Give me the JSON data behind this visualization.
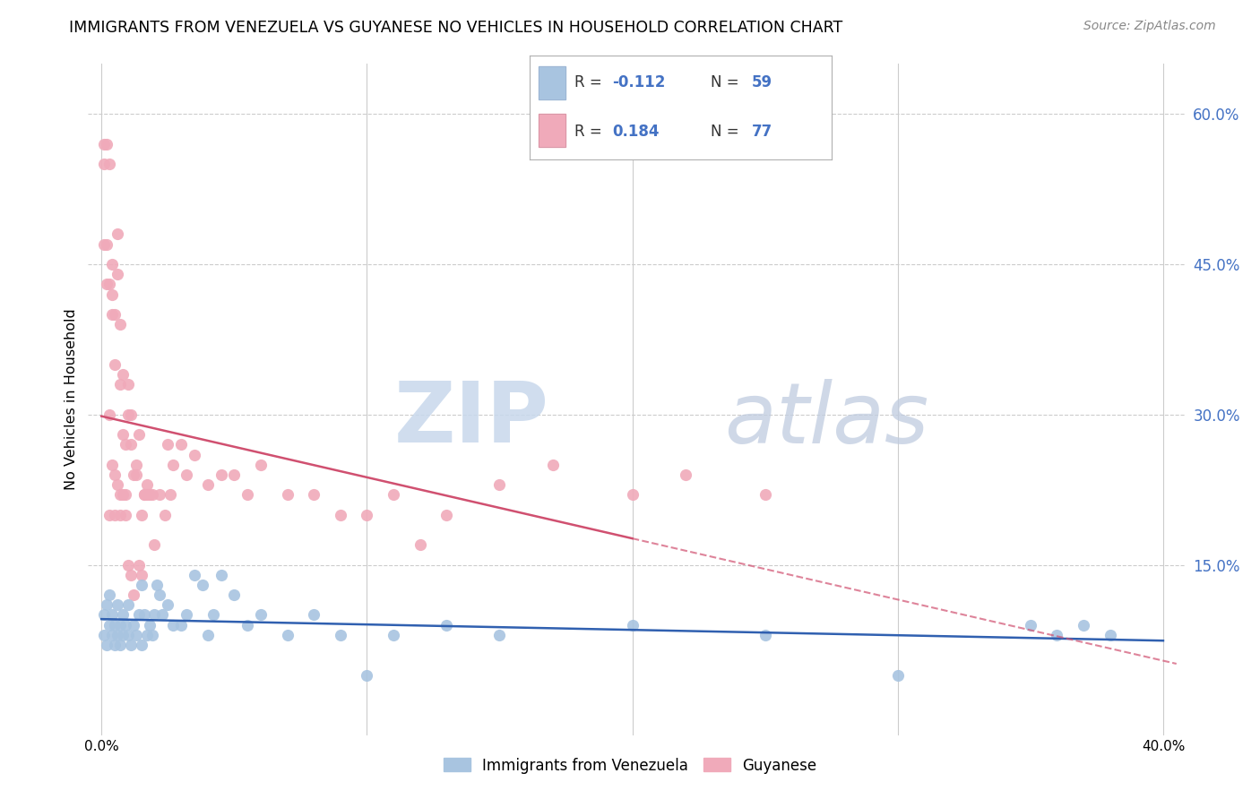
{
  "title": "IMMIGRANTS FROM VENEZUELA VS GUYANESE NO VEHICLES IN HOUSEHOLD CORRELATION CHART",
  "source": "Source: ZipAtlas.com",
  "ylabel": "No Vehicles in Household",
  "right_yticks": [
    "60.0%",
    "45.0%",
    "30.0%",
    "15.0%"
  ],
  "right_ytick_vals": [
    0.6,
    0.45,
    0.3,
    0.15
  ],
  "x_range": [
    0.0,
    0.4
  ],
  "y_range": [
    0.0,
    0.65
  ],
  "legend_blue_R": "-0.112",
  "legend_blue_N": "59",
  "legend_pink_R": "0.184",
  "legend_pink_N": "77",
  "legend_label_blue": "Immigrants from Venezuela",
  "legend_label_pink": "Guyanese",
  "color_blue": "#a8c4e0",
  "color_pink": "#f0aaba",
  "color_blue_line": "#3060b0",
  "color_pink_line": "#d05070",
  "color_blue_dark": "#4472c4",
  "watermark_zip_color": "#c8d8ec",
  "watermark_atlas_color": "#c0cce0",
  "blue_points_x": [
    0.001,
    0.001,
    0.002,
    0.002,
    0.003,
    0.003,
    0.004,
    0.004,
    0.005,
    0.005,
    0.006,
    0.006,
    0.007,
    0.007,
    0.008,
    0.008,
    0.009,
    0.01,
    0.01,
    0.011,
    0.012,
    0.013,
    0.014,
    0.015,
    0.015,
    0.016,
    0.017,
    0.018,
    0.019,
    0.02,
    0.021,
    0.022,
    0.023,
    0.025,
    0.027,
    0.03,
    0.032,
    0.035,
    0.038,
    0.04,
    0.042,
    0.045,
    0.05,
    0.055,
    0.06,
    0.07,
    0.08,
    0.09,
    0.1,
    0.11,
    0.13,
    0.15,
    0.2,
    0.25,
    0.3,
    0.35,
    0.36,
    0.37,
    0.38
  ],
  "blue_points_y": [
    0.1,
    0.08,
    0.11,
    0.07,
    0.09,
    0.12,
    0.08,
    0.1,
    0.09,
    0.07,
    0.11,
    0.08,
    0.09,
    0.07,
    0.1,
    0.08,
    0.09,
    0.08,
    0.11,
    0.07,
    0.09,
    0.08,
    0.1,
    0.13,
    0.07,
    0.1,
    0.08,
    0.09,
    0.08,
    0.1,
    0.13,
    0.12,
    0.1,
    0.11,
    0.09,
    0.09,
    0.1,
    0.14,
    0.13,
    0.08,
    0.1,
    0.14,
    0.12,
    0.09,
    0.1,
    0.08,
    0.1,
    0.08,
    0.04,
    0.08,
    0.09,
    0.08,
    0.09,
    0.08,
    0.04,
    0.09,
    0.08,
    0.09,
    0.08
  ],
  "pink_points_x": [
    0.001,
    0.001,
    0.001,
    0.002,
    0.002,
    0.002,
    0.003,
    0.003,
    0.003,
    0.004,
    0.004,
    0.004,
    0.005,
    0.005,
    0.005,
    0.006,
    0.006,
    0.007,
    0.007,
    0.007,
    0.008,
    0.008,
    0.009,
    0.009,
    0.01,
    0.01,
    0.011,
    0.011,
    0.012,
    0.013,
    0.013,
    0.014,
    0.015,
    0.016,
    0.017,
    0.018,
    0.019,
    0.02,
    0.022,
    0.024,
    0.025,
    0.026,
    0.027,
    0.03,
    0.032,
    0.035,
    0.04,
    0.045,
    0.05,
    0.055,
    0.06,
    0.07,
    0.08,
    0.09,
    0.1,
    0.11,
    0.12,
    0.13,
    0.15,
    0.17,
    0.2,
    0.22,
    0.25,
    0.003,
    0.004,
    0.005,
    0.006,
    0.007,
    0.008,
    0.009,
    0.01,
    0.011,
    0.012,
    0.014,
    0.015,
    0.016,
    0.017
  ],
  "pink_points_y": [
    0.57,
    0.55,
    0.47,
    0.57,
    0.47,
    0.43,
    0.55,
    0.43,
    0.2,
    0.45,
    0.42,
    0.4,
    0.4,
    0.35,
    0.2,
    0.48,
    0.44,
    0.39,
    0.33,
    0.2,
    0.28,
    0.34,
    0.22,
    0.27,
    0.3,
    0.33,
    0.27,
    0.3,
    0.24,
    0.25,
    0.24,
    0.28,
    0.2,
    0.22,
    0.23,
    0.22,
    0.22,
    0.17,
    0.22,
    0.2,
    0.27,
    0.22,
    0.25,
    0.27,
    0.24,
    0.26,
    0.23,
    0.24,
    0.24,
    0.22,
    0.25,
    0.22,
    0.22,
    0.2,
    0.2,
    0.22,
    0.17,
    0.2,
    0.23,
    0.25,
    0.22,
    0.24,
    0.22,
    0.3,
    0.25,
    0.24,
    0.23,
    0.22,
    0.22,
    0.2,
    0.15,
    0.14,
    0.12,
    0.15,
    0.14,
    0.22,
    0.22
  ]
}
